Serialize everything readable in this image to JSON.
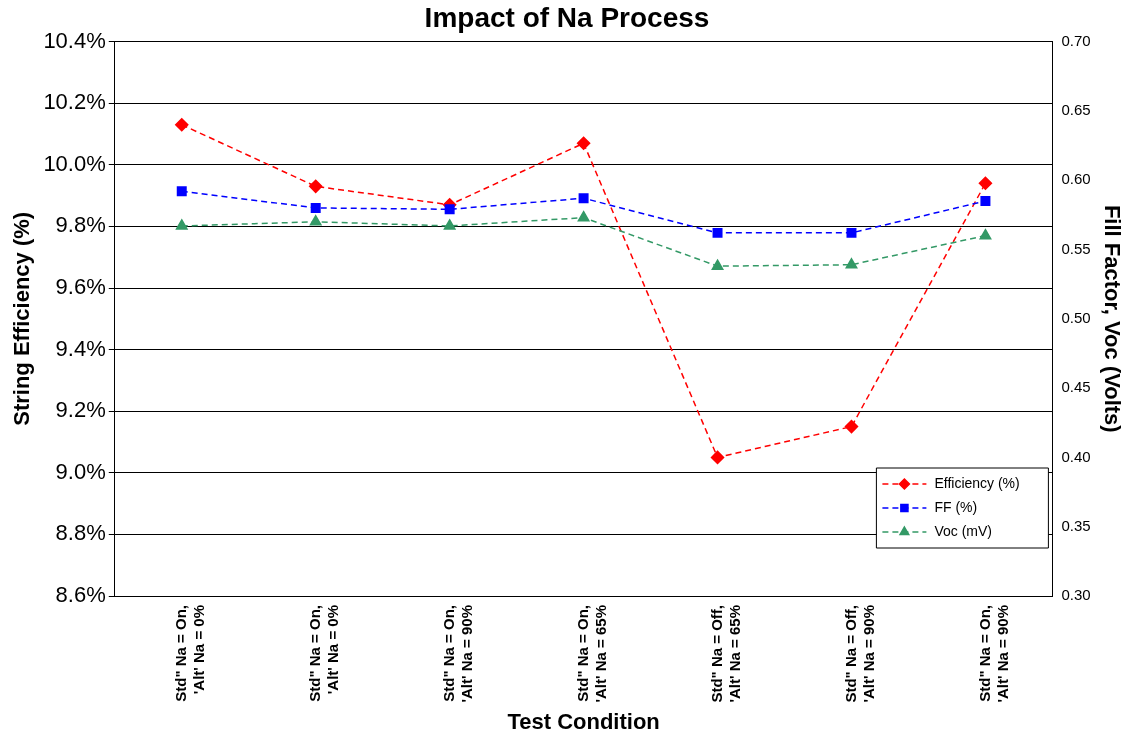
{
  "chart_data": {
    "type": "line",
    "title": "Impact of Na Process",
    "xlabel": "Test Condition",
    "ylabel": "String Efficiency (%)",
    "y2label": "Fill Factor, Voc (Volts)",
    "categories": [
      "Std\" Na = On, 'Alt' Na = 0%",
      "Std\" Na = On, 'Alt' Na = 0%",
      "Std\" Na = On, 'Alt' Na = 90%",
      "Std\" Na = On, 'Alt' Na = 65%",
      "Std\" Na = Off, 'Alt' Na = 65%",
      "Std\" Na = Off, 'Alt' Na = 90%",
      "Std\" Na = On, 'Alt' Na = 90%"
    ],
    "series": [
      {
        "name": "Efficiency (%)",
        "color": "#ff0000",
        "marker": "diamond",
        "values": [
          10.13,
          9.93,
          9.87,
          10.07,
          9.05,
          9.15,
          9.94
        ]
      },
      {
        "name": "FF (%)",
        "color": "#0000ff",
        "marker": "square",
        "axis": "y2",
        "values": [
          0.592,
          0.58,
          0.579,
          0.587,
          0.562,
          0.562,
          0.585
        ]
      },
      {
        "name": "Voc (mV)",
        "color": "#339966",
        "marker": "triangle",
        "axis": "y2",
        "values": [
          0.567,
          0.57,
          0.567,
          0.573,
          0.538,
          0.539,
          0.56
        ]
      }
    ],
    "ylim": [
      8.6,
      10.4
    ],
    "yticks": [
      {
        "value": 8.6,
        "label": "8.6%"
      },
      {
        "value": 8.8,
        "label": "8.8%"
      },
      {
        "value": 9.0,
        "label": "9.0%"
      },
      {
        "value": 9.2,
        "label": "9.2%"
      },
      {
        "value": 9.4,
        "label": "9.4%"
      },
      {
        "value": 9.6,
        "label": "9.6%"
      },
      {
        "value": 9.8,
        "label": "9.8%"
      },
      {
        "value": 10.0,
        "label": "10.0%"
      },
      {
        "value": 10.2,
        "label": "10.2%"
      },
      {
        "value": 10.4,
        "label": "10.4%"
      }
    ],
    "y2lim": [
      0.3,
      0.7
    ],
    "y2ticks": [
      {
        "value": 0.3,
        "label": "0.30"
      },
      {
        "value": 0.35,
        "label": "0.35"
      },
      {
        "value": 0.4,
        "label": "0.40"
      },
      {
        "value": 0.45,
        "label": "0.45"
      },
      {
        "value": 0.5,
        "label": "0.50"
      },
      {
        "value": 0.55,
        "label": "0.55"
      },
      {
        "value": 0.6,
        "label": "0.60"
      },
      {
        "value": 0.65,
        "label": "0.65"
      },
      {
        "value": 0.7,
        "label": "0.70"
      }
    ],
    "grid": "y",
    "legend": "bottom right",
    "line_style": "dashed"
  }
}
